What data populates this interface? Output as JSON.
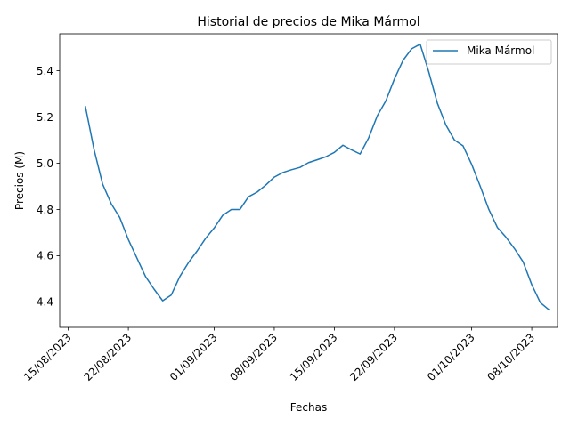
{
  "chart_data": {
    "type": "line",
    "title": "Historial de precios de Mika Mármol",
    "xlabel": "Fechas",
    "ylabel": "Precios (M)",
    "x_tick_labels": [
      "15/08/2023",
      "22/08/2023",
      "01/09/2023",
      "08/09/2023",
      "15/09/2023",
      "22/09/2023",
      "01/10/2023",
      "08/10/2023"
    ],
    "x_tick_dates": [
      "2023-08-15",
      "2023-08-22",
      "2023-09-01",
      "2023-09-08",
      "2023-09-15",
      "2023-09-22",
      "2023-10-01",
      "2023-10-08"
    ],
    "y_ticks": [
      4.4,
      4.6,
      4.8,
      5.0,
      5.2,
      5.4
    ],
    "y_tick_labels": [
      "4.4",
      "4.6",
      "4.8",
      "5.0",
      "5.2",
      "5.4"
    ],
    "xlim": [
      "2023-08-14",
      "2023-10-11"
    ],
    "ylim": [
      4.29,
      5.56
    ],
    "grid": false,
    "legend_position": "top-right",
    "series": [
      {
        "name": "Mika Mármol",
        "color": "#1f77b4",
        "x": [
          "2023-08-17",
          "2023-08-18",
          "2023-08-19",
          "2023-08-20",
          "2023-08-21",
          "2023-08-22",
          "2023-08-23",
          "2023-08-24",
          "2023-08-25",
          "2023-08-26",
          "2023-08-27",
          "2023-08-28",
          "2023-08-29",
          "2023-08-30",
          "2023-08-31",
          "2023-09-01",
          "2023-09-02",
          "2023-09-03",
          "2023-09-04",
          "2023-09-05",
          "2023-09-06",
          "2023-09-07",
          "2023-09-08",
          "2023-09-09",
          "2023-09-10",
          "2023-09-11",
          "2023-09-12",
          "2023-09-13",
          "2023-09-14",
          "2023-09-15",
          "2023-09-16",
          "2023-09-17",
          "2023-09-18",
          "2023-09-19",
          "2023-09-20",
          "2023-09-21",
          "2023-09-22",
          "2023-09-23",
          "2023-09-24",
          "2023-09-25",
          "2023-09-26",
          "2023-09-27",
          "2023-09-28",
          "2023-09-29",
          "2023-09-30",
          "2023-10-01",
          "2023-10-02",
          "2023-10-03",
          "2023-10-04",
          "2023-10-05",
          "2023-10-06",
          "2023-10-07",
          "2023-10-08",
          "2023-10-09",
          "2023-10-10"
        ],
        "values": [
          5.245,
          5.06,
          4.91,
          4.825,
          4.765,
          4.67,
          4.59,
          4.51,
          4.455,
          4.405,
          4.43,
          4.51,
          4.57,
          4.62,
          4.675,
          4.72,
          4.775,
          4.8,
          4.8,
          4.855,
          4.875,
          4.905,
          4.94,
          4.96,
          4.972,
          4.982,
          5.003,
          5.015,
          5.028,
          5.047,
          5.078,
          5.058,
          5.04,
          5.11,
          5.205,
          5.27,
          5.365,
          5.445,
          5.495,
          5.515,
          5.395,
          5.26,
          5.165,
          5.1,
          5.075,
          4.995,
          4.9,
          4.8,
          4.722,
          4.68,
          4.63,
          4.573,
          4.475,
          4.397,
          4.366
        ]
      }
    ]
  }
}
